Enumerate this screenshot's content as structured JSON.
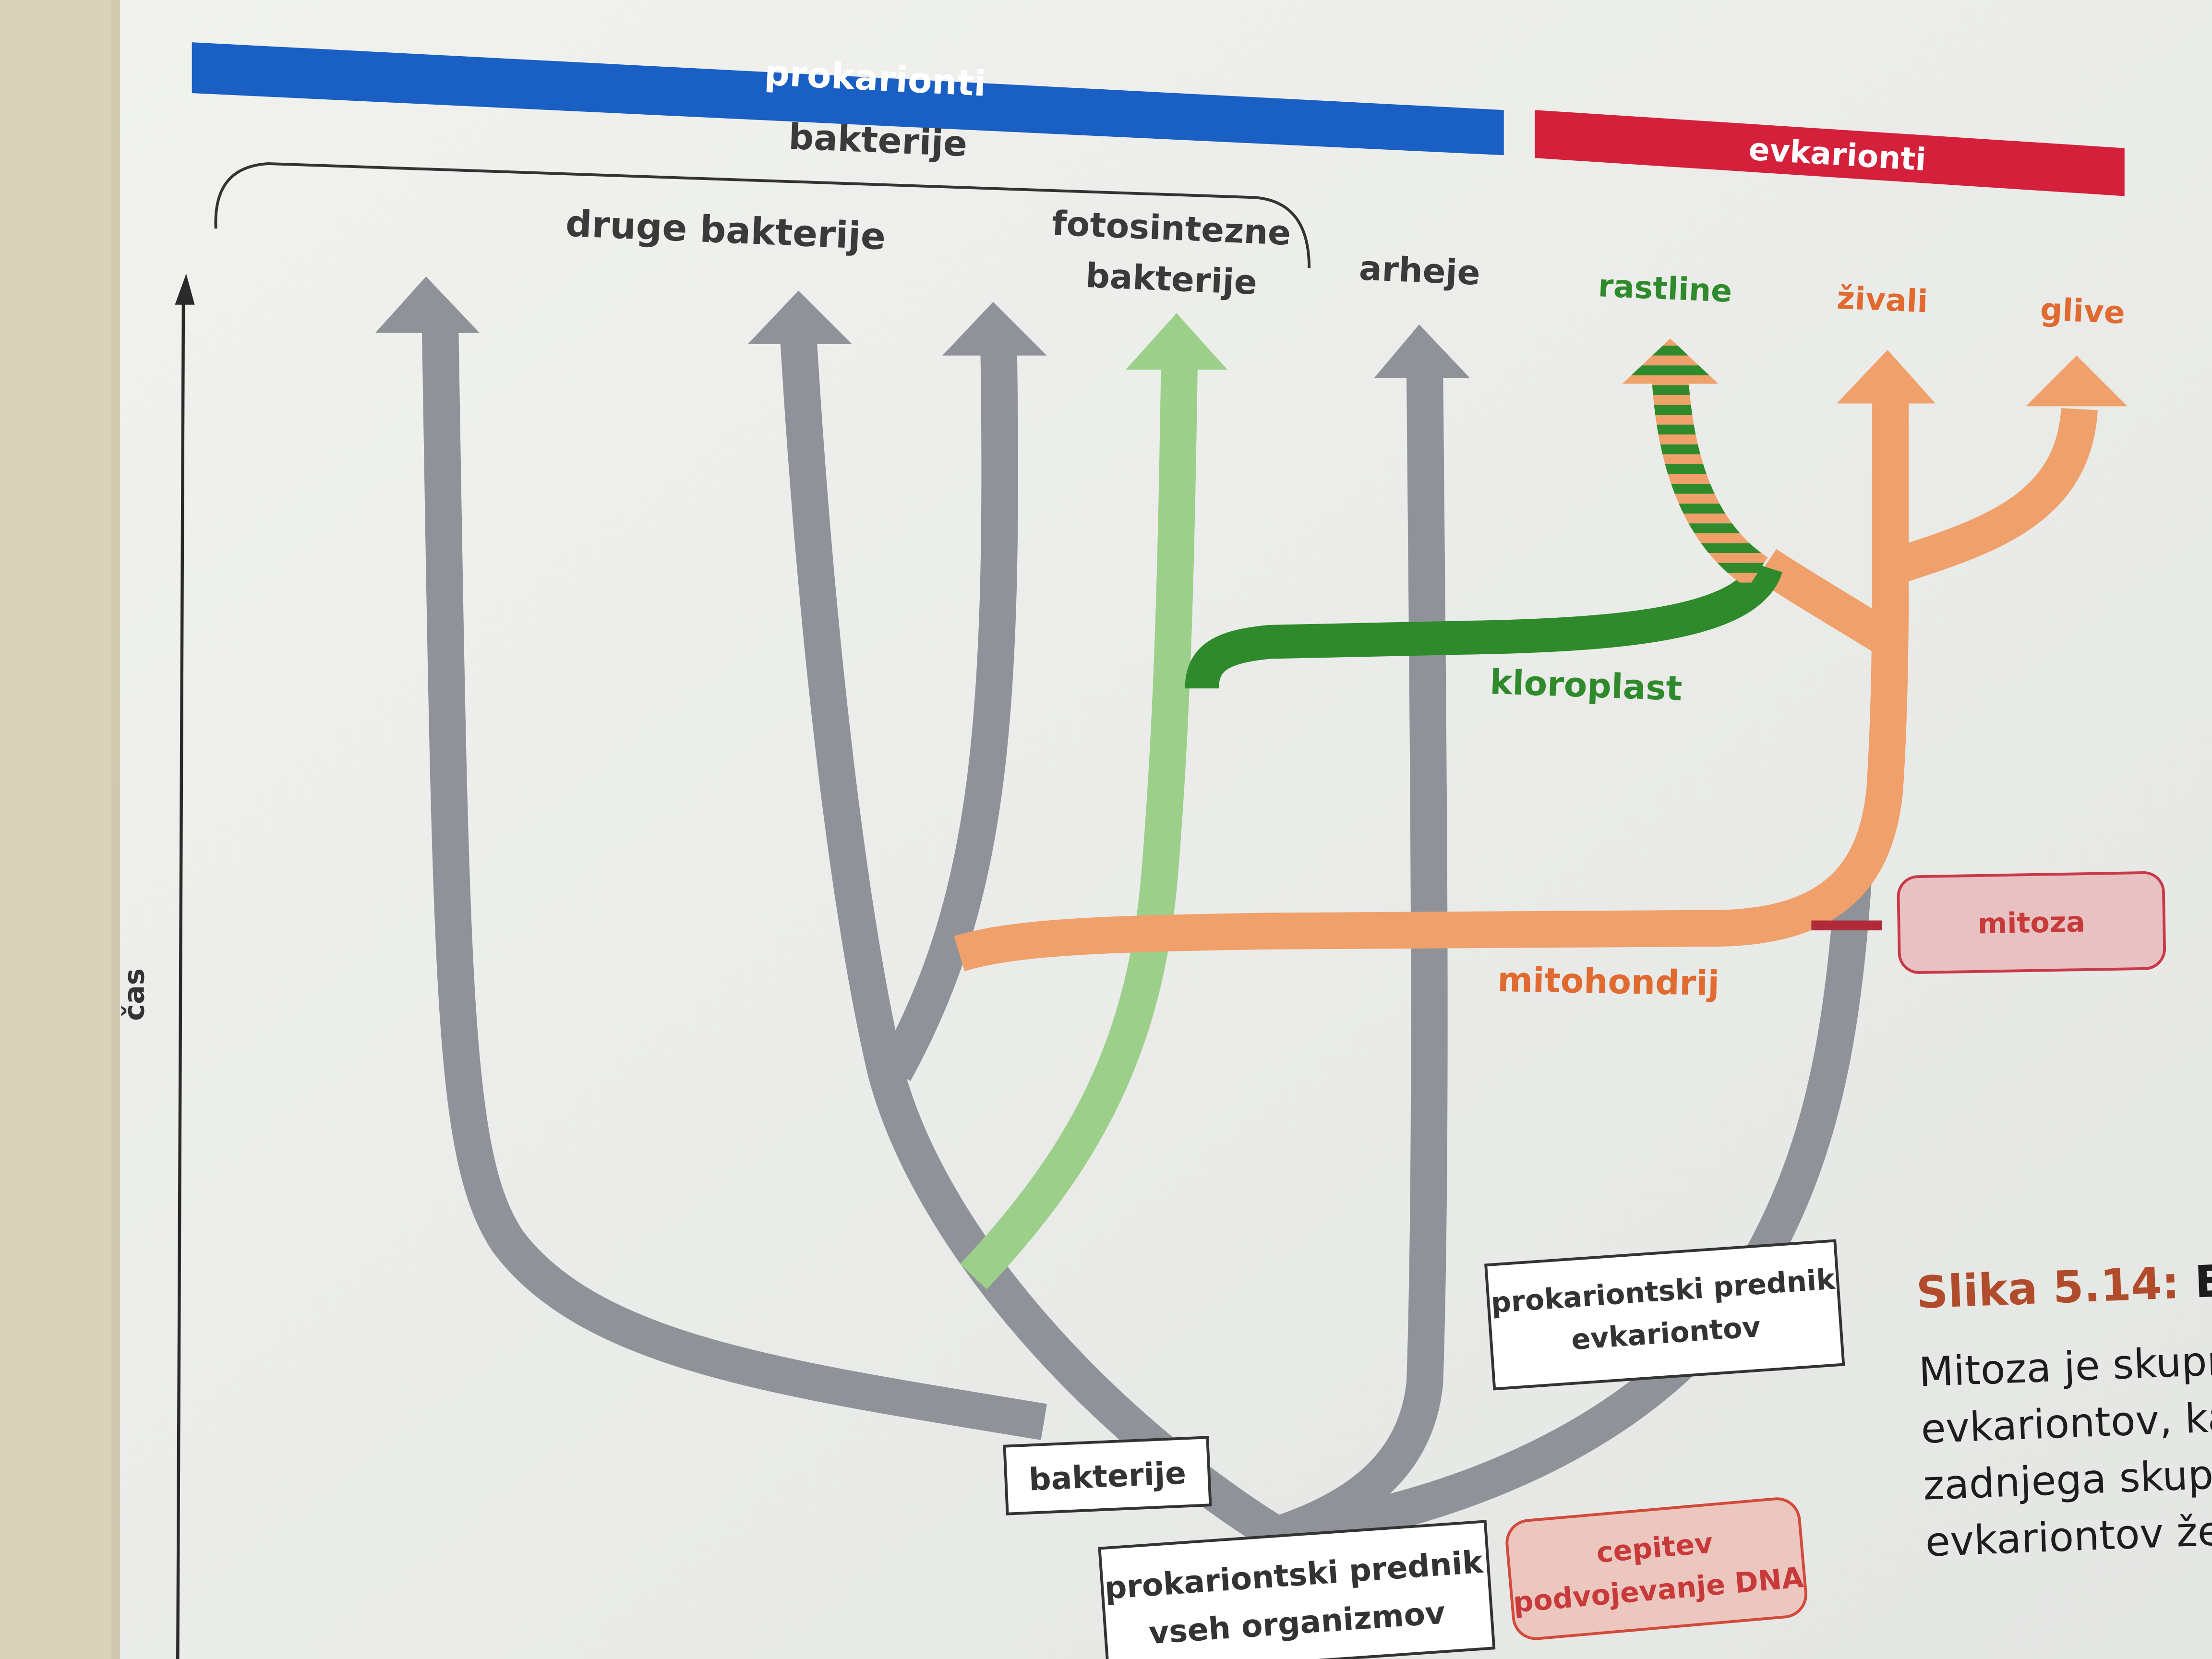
{
  "header": {
    "prokaryotes": "prokarionti",
    "eukaryotes": "evkarionti",
    "bacteria_group": "bakterije"
  },
  "colors": {
    "prokaryote_bar": "#1a5fc4",
    "eukaryote_bar": "#d4203a",
    "lineage_gray": "#8f9399",
    "photosynthetic": "#9ccf8a",
    "chloroplast": "#2f8a2c",
    "eukaryote_orange": "#f0a06a",
    "mitosis_box": "#e8c2c2",
    "mitosis_border": "#c83a4a",
    "dna_box": "#ecc7c0",
    "dna_border": "#d24a3a",
    "green_text": "#2f8a2c",
    "orange_text": "#e06a30",
    "red_text": "#c83a3a"
  },
  "branches": {
    "other_bacteria": "druge bakterije",
    "photosynthetic_line1": "fotosintezne",
    "photosynthetic_line2": "bakterije",
    "archaea": "arheje",
    "plants": "rastline",
    "animals": "živali",
    "fungi": "glive"
  },
  "events": {
    "chloroplast": "kloroplast",
    "mitochondrion": "mitohondrij",
    "mitosis": "mitoza",
    "dna_line1": "cepitev",
    "dna_line2": "podvojevanje DNA"
  },
  "nodes": {
    "bacteria": "bakterije",
    "euk_ancestor_line1": "prokariontski prednik",
    "euk_ancestor_line2": "evkariontov",
    "root_line1": "prokariontski prednik",
    "root_line2": "vseh organizmov"
  },
  "axis": {
    "label": "čas"
  },
  "caption": {
    "number": "Slika 5.14:",
    "title_start": "Evol",
    "lines": [
      "Mitoza je skupna",
      "evkariontov, kar",
      "zadnjega skupn",
      "evkariontov že"
    ]
  }
}
